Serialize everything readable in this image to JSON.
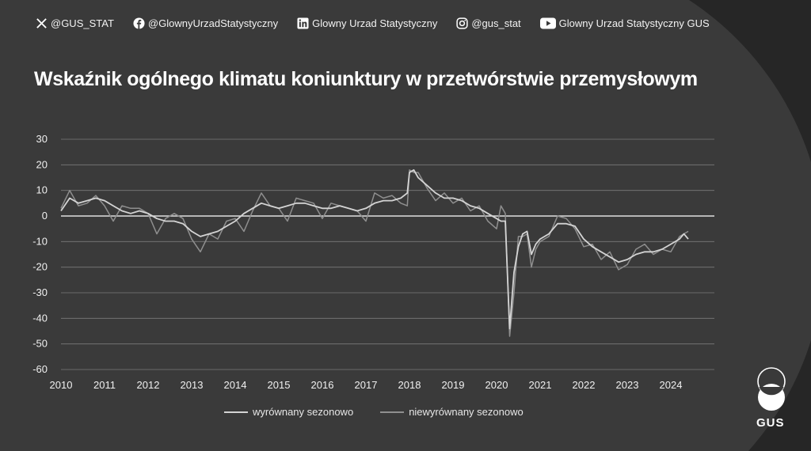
{
  "social": [
    {
      "icon": "x-icon",
      "label": "@GUS_STAT"
    },
    {
      "icon": "facebook-icon",
      "label": "@GlownyUrzadStatystyczny"
    },
    {
      "icon": "linkedin-icon",
      "label": "Glowny Urzad Statystyczny"
    },
    {
      "icon": "instagram-icon",
      "label": "@gus_stat"
    },
    {
      "icon": "youtube-icon",
      "label": "Glowny Urzad Statystyczny GUS"
    }
  ],
  "logo_text": "GUS",
  "colors": {
    "background": "#3a3a3a",
    "accent": "#262626",
    "series_sa": "#d4d4d4",
    "series_nsa": "#8f8f8f",
    "zero_line": "#e0e0e0",
    "grid": "#7a7a7a"
  },
  "chart_data": {
    "type": "line",
    "title": "Wskaźnik ogólnego klimatu koniunktury w przetwórstwie przemysłowym",
    "xlabel": "",
    "ylabel": "",
    "xlim": [
      2010,
      2025
    ],
    "ylim": [
      -60,
      30
    ],
    "yticks": [
      30,
      20,
      10,
      0,
      -10,
      -20,
      -30,
      -40,
      -50,
      -60
    ],
    "xticks": [
      "2010",
      "2011",
      "2012",
      "2013",
      "2014",
      "2015",
      "2016",
      "2017",
      "2018",
      "2019",
      "2020",
      "2021",
      "2022",
      "2023",
      "2024"
    ],
    "grid": true,
    "legend": "bottom",
    "series": [
      {
        "name": "wyrównany sezonowo",
        "points": [
          [
            2010.0,
            2
          ],
          [
            2010.2,
            7
          ],
          [
            2010.4,
            5
          ],
          [
            2010.6,
            6
          ],
          [
            2010.8,
            7
          ],
          [
            2011.0,
            6
          ],
          [
            2011.2,
            4
          ],
          [
            2011.4,
            2
          ],
          [
            2011.6,
            1
          ],
          [
            2011.8,
            2
          ],
          [
            2012.0,
            1
          ],
          [
            2012.2,
            -1
          ],
          [
            2012.4,
            -2
          ],
          [
            2012.6,
            -2
          ],
          [
            2012.8,
            -3
          ],
          [
            2013.0,
            -6
          ],
          [
            2013.2,
            -8
          ],
          [
            2013.4,
            -7
          ],
          [
            2013.6,
            -6
          ],
          [
            2013.8,
            -4
          ],
          [
            2014.0,
            -2
          ],
          [
            2014.2,
            1
          ],
          [
            2014.4,
            3
          ],
          [
            2014.6,
            5
          ],
          [
            2014.8,
            4
          ],
          [
            2015.0,
            3
          ],
          [
            2015.2,
            4
          ],
          [
            2015.4,
            5
          ],
          [
            2015.6,
            5
          ],
          [
            2015.8,
            4
          ],
          [
            2016.0,
            3
          ],
          [
            2016.2,
            3
          ],
          [
            2016.4,
            4
          ],
          [
            2016.6,
            3
          ],
          [
            2016.8,
            2
          ],
          [
            2017.0,
            3
          ],
          [
            2017.2,
            5
          ],
          [
            2017.4,
            6
          ],
          [
            2017.6,
            6
          ],
          [
            2017.8,
            7
          ],
          [
            2017.95,
            9
          ],
          [
            2018.0,
            17
          ],
          [
            2018.1,
            18
          ],
          [
            2018.2,
            15
          ],
          [
            2018.4,
            12
          ],
          [
            2018.6,
            9
          ],
          [
            2018.8,
            7
          ],
          [
            2019.0,
            7
          ],
          [
            2019.2,
            6
          ],
          [
            2019.4,
            4
          ],
          [
            2019.6,
            3
          ],
          [
            2019.8,
            1
          ],
          [
            2020.0,
            -1
          ],
          [
            2020.1,
            -2
          ],
          [
            2020.2,
            -2
          ],
          [
            2020.3,
            -44
          ],
          [
            2020.4,
            -22
          ],
          [
            2020.5,
            -12
          ],
          [
            2020.6,
            -7
          ],
          [
            2020.7,
            -6
          ],
          [
            2020.8,
            -15
          ],
          [
            2020.9,
            -11
          ],
          [
            2021.0,
            -9
          ],
          [
            2021.2,
            -7
          ],
          [
            2021.4,
            -3
          ],
          [
            2021.6,
            -3
          ],
          [
            2021.8,
            -4
          ],
          [
            2022.0,
            -9
          ],
          [
            2022.2,
            -12
          ],
          [
            2022.4,
            -14
          ],
          [
            2022.6,
            -16
          ],
          [
            2022.8,
            -18
          ],
          [
            2023.0,
            -17
          ],
          [
            2023.2,
            -15
          ],
          [
            2023.4,
            -14
          ],
          [
            2023.6,
            -14
          ],
          [
            2023.8,
            -13
          ],
          [
            2024.0,
            -11
          ],
          [
            2024.2,
            -9
          ],
          [
            2024.3,
            -7
          ],
          [
            2024.4,
            -9
          ]
        ]
      },
      {
        "name": "niewyrównany sezonowo",
        "points": [
          [
            2010.0,
            3
          ],
          [
            2010.2,
            10
          ],
          [
            2010.4,
            4
          ],
          [
            2010.6,
            5
          ],
          [
            2010.8,
            8
          ],
          [
            2011.0,
            4
          ],
          [
            2011.2,
            -2
          ],
          [
            2011.4,
            4
          ],
          [
            2011.6,
            3
          ],
          [
            2011.8,
            3
          ],
          [
            2012.0,
            1
          ],
          [
            2012.2,
            -7
          ],
          [
            2012.4,
            -1
          ],
          [
            2012.6,
            1
          ],
          [
            2012.8,
            -1
          ],
          [
            2013.0,
            -9
          ],
          [
            2013.2,
            -14
          ],
          [
            2013.4,
            -7
          ],
          [
            2013.6,
            -9
          ],
          [
            2013.8,
            -2
          ],
          [
            2014.0,
            -1
          ],
          [
            2014.2,
            -6
          ],
          [
            2014.4,
            2
          ],
          [
            2014.6,
            9
          ],
          [
            2014.8,
            4
          ],
          [
            2015.0,
            3
          ],
          [
            2015.2,
            -2
          ],
          [
            2015.4,
            7
          ],
          [
            2015.6,
            6
          ],
          [
            2015.8,
            5
          ],
          [
            2016.0,
            -1
          ],
          [
            2016.2,
            5
          ],
          [
            2016.4,
            4
          ],
          [
            2016.6,
            3
          ],
          [
            2016.8,
            2
          ],
          [
            2017.0,
            -2
          ],
          [
            2017.2,
            9
          ],
          [
            2017.4,
            7
          ],
          [
            2017.6,
            8
          ],
          [
            2017.8,
            5
          ],
          [
            2017.95,
            4
          ],
          [
            2018.0,
            18
          ],
          [
            2018.1,
            17
          ],
          [
            2018.2,
            17
          ],
          [
            2018.4,
            11
          ],
          [
            2018.6,
            6
          ],
          [
            2018.8,
            9
          ],
          [
            2019.0,
            5
          ],
          [
            2019.2,
            7
          ],
          [
            2019.4,
            2
          ],
          [
            2019.6,
            4
          ],
          [
            2019.8,
            -2
          ],
          [
            2020.0,
            -5
          ],
          [
            2020.1,
            4
          ],
          [
            2020.2,
            1
          ],
          [
            2020.3,
            -47
          ],
          [
            2020.4,
            -30
          ],
          [
            2020.5,
            -8
          ],
          [
            2020.6,
            -8
          ],
          [
            2020.7,
            -7
          ],
          [
            2020.8,
            -20
          ],
          [
            2020.9,
            -13
          ],
          [
            2021.0,
            -10
          ],
          [
            2021.2,
            -8
          ],
          [
            2021.4,
            0
          ],
          [
            2021.6,
            -1
          ],
          [
            2021.8,
            -5
          ],
          [
            2022.0,
            -12
          ],
          [
            2022.2,
            -11
          ],
          [
            2022.4,
            -17
          ],
          [
            2022.6,
            -14
          ],
          [
            2022.8,
            -21
          ],
          [
            2023.0,
            -19
          ],
          [
            2023.2,
            -13
          ],
          [
            2023.4,
            -11
          ],
          [
            2023.6,
            -15
          ],
          [
            2023.8,
            -13
          ],
          [
            2024.0,
            -14
          ],
          [
            2024.2,
            -8
          ],
          [
            2024.3,
            -7
          ],
          [
            2024.4,
            -6
          ]
        ]
      }
    ]
  }
}
